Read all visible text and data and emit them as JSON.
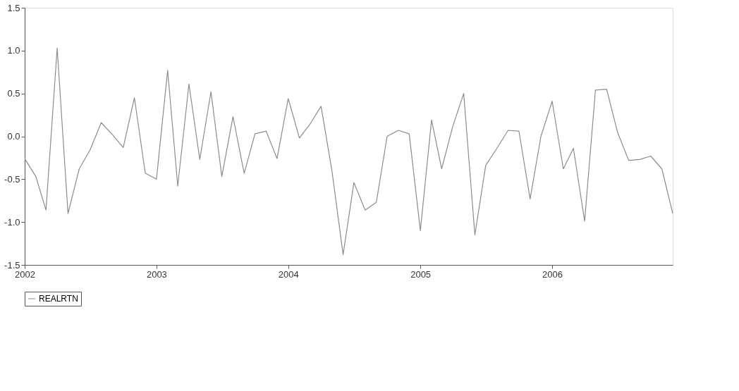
{
  "chart_data": {
    "type": "line",
    "x": [
      "2002-01",
      "2002-02",
      "2002-03",
      "2002-04",
      "2002-05",
      "2002-06",
      "2002-07",
      "2002-08",
      "2002-09",
      "2002-10",
      "2002-11",
      "2002-12",
      "2003-01",
      "2003-02",
      "2003-03",
      "2003-04",
      "2003-05",
      "2003-06",
      "2003-07",
      "2003-08",
      "2003-09",
      "2003-10",
      "2003-11",
      "2003-12",
      "2004-01",
      "2004-02",
      "2004-03",
      "2004-04",
      "2004-05",
      "2004-06",
      "2004-07",
      "2004-08",
      "2004-09",
      "2004-10",
      "2004-11",
      "2004-12",
      "2005-01",
      "2005-02",
      "2005-03",
      "2005-04",
      "2005-05",
      "2005-06",
      "2005-07",
      "2005-08",
      "2005-09",
      "2005-10",
      "2005-11",
      "2005-12",
      "2006-01",
      "2006-02",
      "2006-03",
      "2006-04",
      "2006-05",
      "2006-06",
      "2006-07",
      "2006-08",
      "2006-09",
      "2006-10",
      "2006-11",
      "2006-12"
    ],
    "series": [
      {
        "name": "REALRTN",
        "color": "#8c8c8c",
        "values": [
          -0.26,
          -0.47,
          -0.86,
          1.03,
          -0.9,
          -0.38,
          -0.16,
          0.16,
          0.02,
          -0.13,
          0.45,
          -0.43,
          -0.5,
          0.77,
          -0.58,
          0.61,
          -0.27,
          0.52,
          -0.47,
          0.23,
          -0.43,
          0.03,
          0.06,
          -0.26,
          0.44,
          -0.02,
          0.14,
          0.35,
          -0.4,
          -1.38,
          -0.54,
          -0.86,
          -0.77,
          0.0,
          0.07,
          0.03,
          -1.1,
          0.19,
          -0.38,
          0.12,
          0.5,
          -1.15,
          -0.34,
          -0.14,
          0.07,
          0.06,
          -0.73,
          0.0,
          0.41,
          -0.38,
          -0.14,
          -0.99,
          0.54,
          0.55,
          0.05,
          -0.28,
          -0.27,
          -0.23,
          -0.38,
          -0.9
        ]
      }
    ],
    "xlim": [
      "2002-01",
      "2006-12"
    ],
    "xticks": [
      "2002",
      "2003",
      "2004",
      "2005",
      "2006"
    ],
    "ylim": [
      -1.5,
      1.5
    ],
    "yticks": [
      {
        "value": -1.5,
        "label": "-1.5"
      },
      {
        "value": -1.0,
        "label": "-1.0"
      },
      {
        "value": -0.5,
        "label": "-0.5"
      },
      {
        "value": 0,
        "label": "0.0"
      },
      {
        "value": 0.5,
        "label": "0.5"
      },
      {
        "value": 1.0,
        "label": "1.0"
      },
      {
        "value": 1.5,
        "label": "1.5"
      }
    ],
    "grid": false,
    "legend": "bottom",
    "marker": "none",
    "line_style": "solid"
  }
}
